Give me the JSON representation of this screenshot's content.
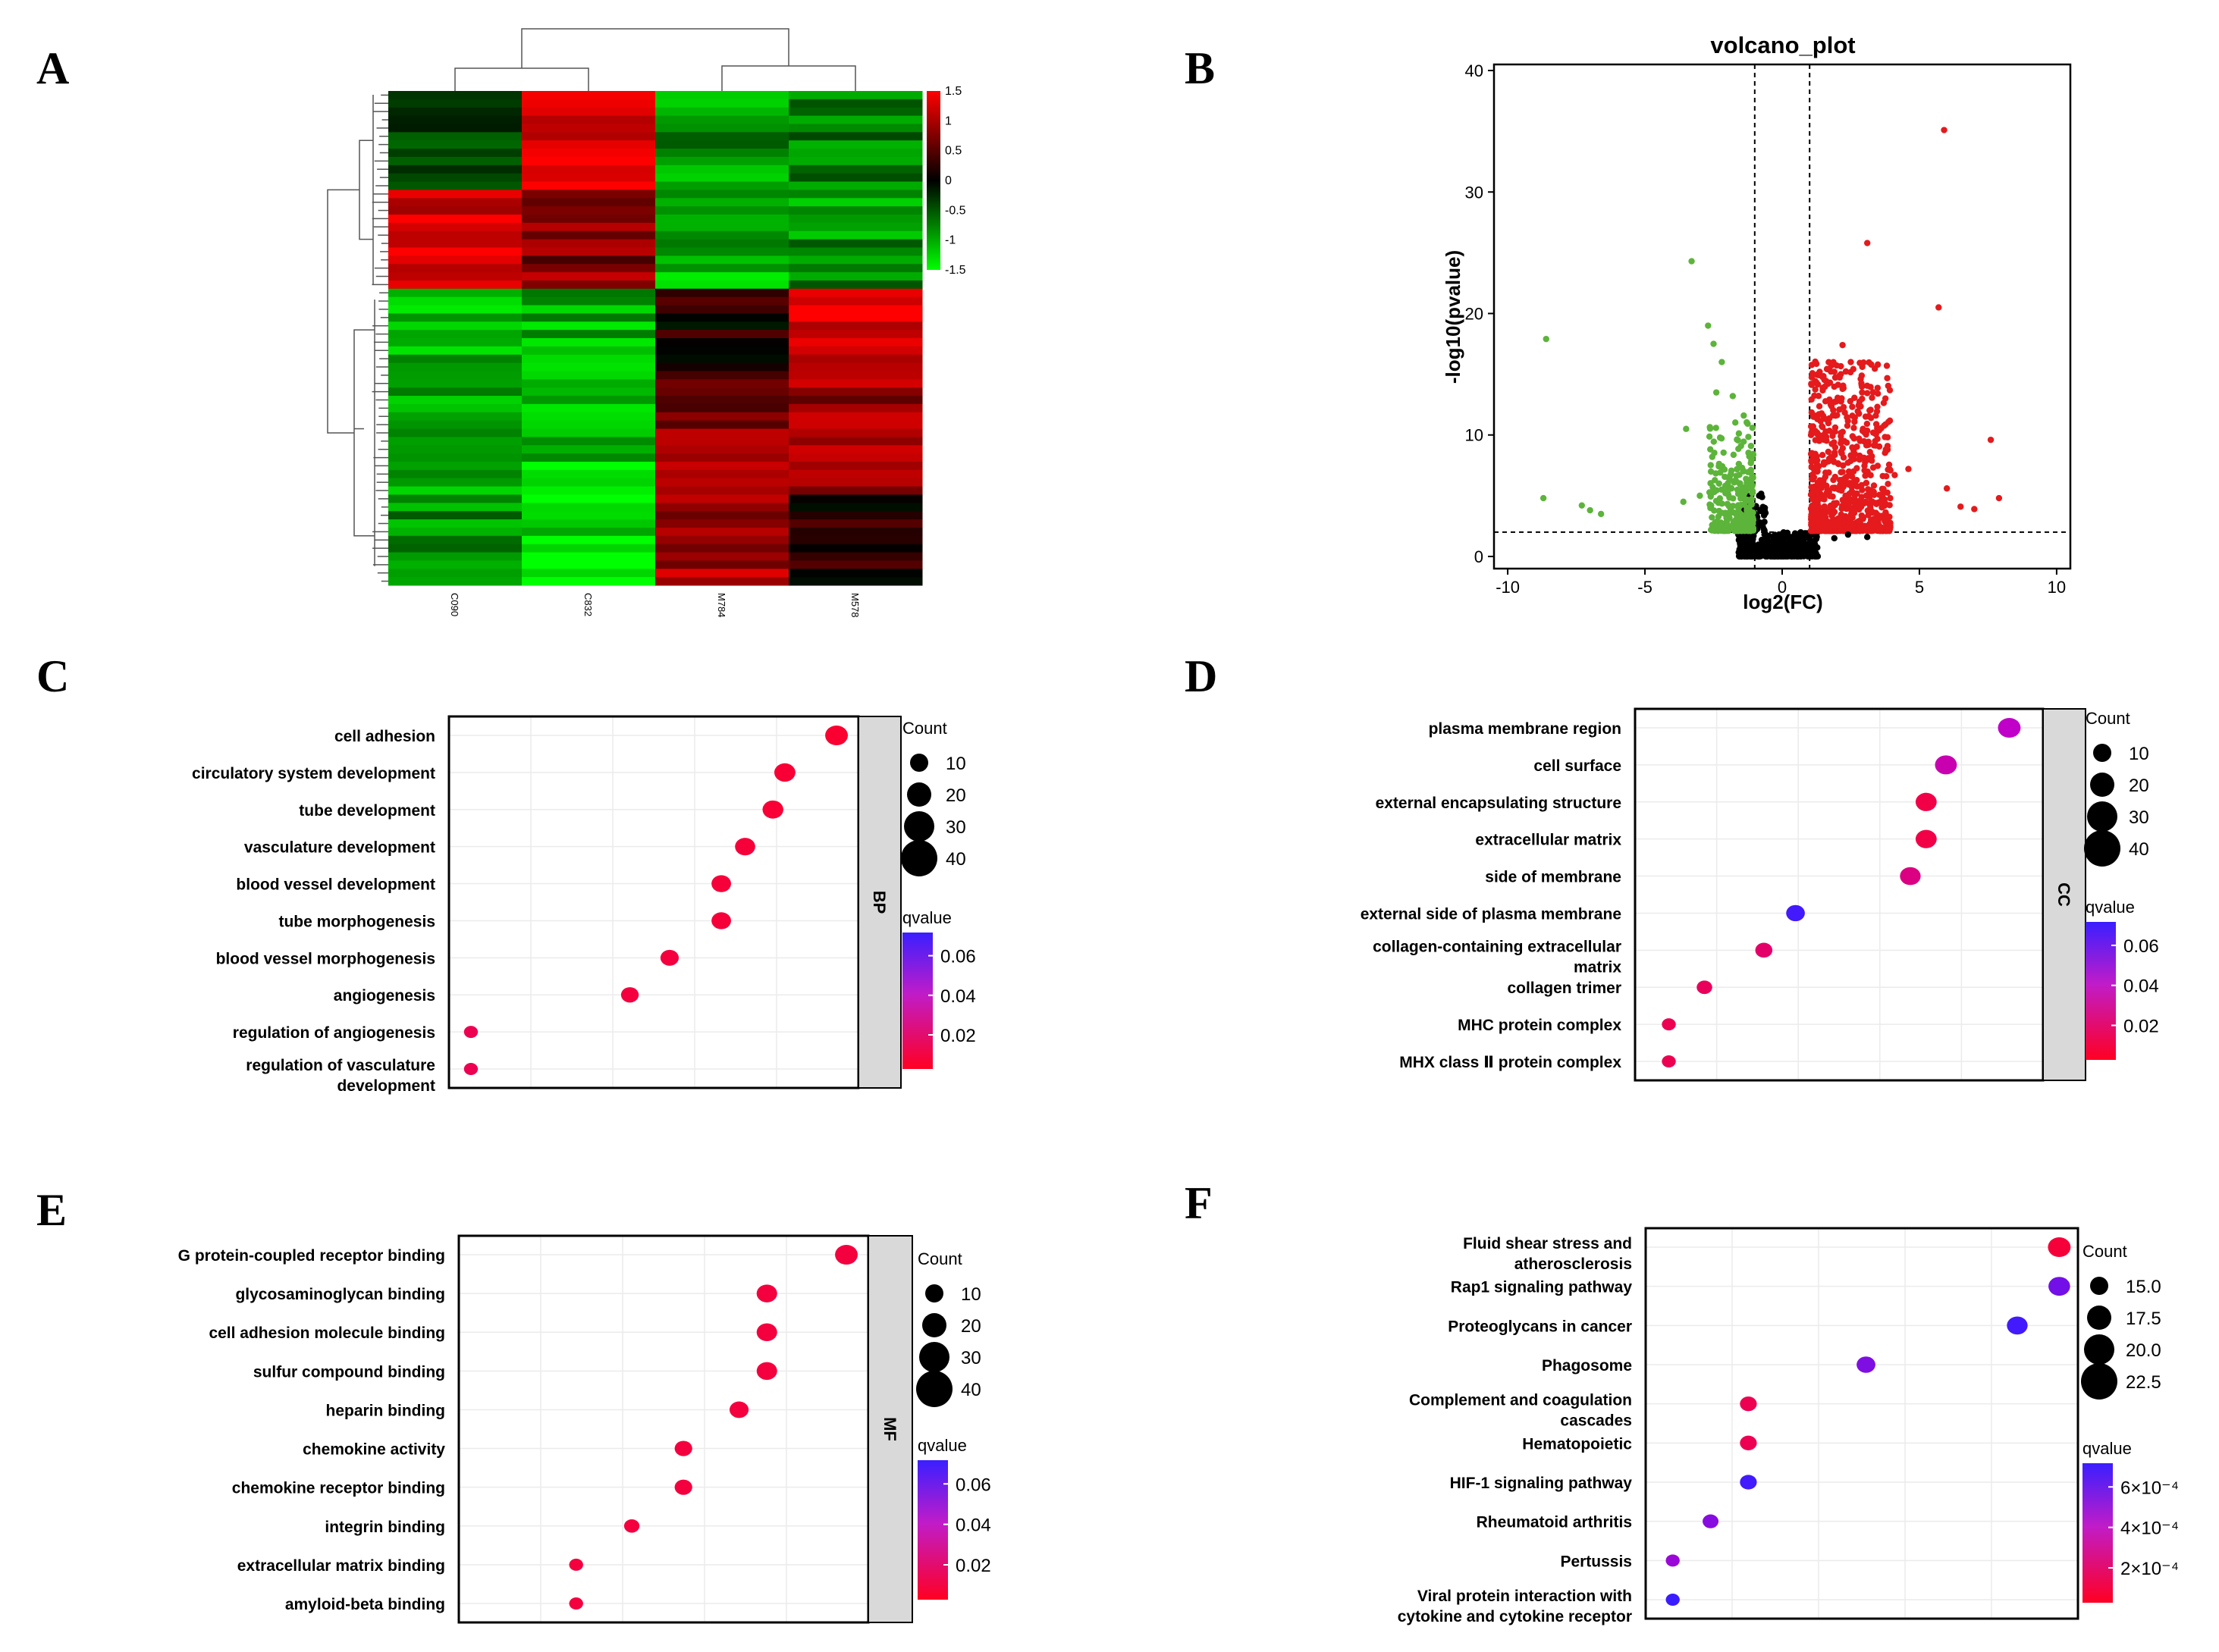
{
  "chart_data": [
    {
      "panel": "A",
      "type": "heatmap",
      "columns": [
        "C090",
        "C832",
        "M784",
        "M578"
      ],
      "blocks": [
        {
          "rows": 12,
          "values": [
            -0.3,
            1.4,
            -0.9,
            -0.8
          ]
        },
        {
          "rows": 12,
          "values": [
            1.3,
            0.8,
            -1.0,
            -0.9
          ]
        },
        {
          "rows": 10,
          "values": [
            -1.0,
            -1.0,
            0.2,
            1.4
          ]
        },
        {
          "rows": 14,
          "values": [
            -0.9,
            -1.2,
            0.8,
            0.9
          ]
        },
        {
          "rows": 12,
          "values": [
            -0.9,
            -1.3,
            1.0,
            0.3
          ]
        }
      ],
      "colorbar": {
        "ticks": [
          "1.5",
          "1",
          "0.5",
          "0",
          "-0.5",
          "-1",
          "-1.5"
        ],
        "low": "#00ff00",
        "mid": "#000000",
        "high": "#ff0000"
      }
    },
    {
      "panel": "B",
      "type": "scatter",
      "title": "volcano_plot",
      "xlabel": "log2(FC)",
      "ylabel": "-log10(pvalue)",
      "xlim": [
        -10.5,
        10.5
      ],
      "ylim": [
        -1,
        40.5
      ],
      "xticks": [
        "-10",
        "-5",
        "0",
        "5",
        "10"
      ],
      "yticks": [
        "0",
        "10",
        "20",
        "30",
        "40"
      ],
      "thresholds": {
        "x": [
          -1,
          1
        ],
        "y": 2
      },
      "colors": {
        "down": "#5cb43a",
        "up": "#e41a1c",
        "ns": "#000000"
      },
      "down_points": [
        [
          -8.6,
          17.9
        ],
        [
          -3.3,
          24.3
        ],
        [
          -2.7,
          19
        ],
        [
          -2.5,
          17.5
        ],
        [
          -2.2,
          16
        ],
        [
          -2.4,
          13.5
        ],
        [
          -3.5,
          10.5
        ],
        [
          -1.8,
          13.2
        ],
        [
          -8.7,
          4.8
        ],
        [
          -7.3,
          4.2
        ],
        [
          -7.0,
          3.8
        ],
        [
          -6.6,
          3.5
        ],
        [
          -3.6,
          4.5
        ],
        [
          -3.0,
          5.0
        ],
        [
          -2.6,
          4.1
        ],
        [
          -2.3,
          6.0
        ],
        [
          -1.4,
          11.6
        ],
        [
          -1.5,
          9.1
        ]
      ],
      "up_points": [
        [
          5.9,
          35.1
        ],
        [
          3.1,
          25.8
        ],
        [
          5.7,
          20.5
        ],
        [
          2.2,
          17.4
        ],
        [
          2.5,
          16.0
        ],
        [
          1.9,
          15.2
        ],
        [
          7.6,
          9.6
        ],
        [
          7.9,
          4.8
        ],
        [
          6.5,
          4.1
        ],
        [
          7.0,
          3.9
        ],
        [
          4.6,
          7.2
        ],
        [
          4.1,
          6.7
        ],
        [
          6.0,
          5.6
        ],
        [
          3.6,
          4.4
        ],
        [
          3.2,
          8.6
        ],
        [
          2.8,
          9.7
        ]
      ],
      "ns_points": [
        [
          3.1,
          1.6
        ],
        [
          2.4,
          1.8
        ],
        [
          1.9,
          1.5
        ],
        [
          -1.3,
          1.2
        ],
        [
          0.1,
          0.5
        ]
      ]
    },
    {
      "panel": "C",
      "type": "scatter",
      "facet": "BP",
      "categories": [
        "cell adhesion",
        "circulatory system development",
        "tube development",
        "vasculature development",
        "blood vessel development",
        "tube morphogenesis",
        "blood vessel morphogenesis",
        "angiogenesis",
        "regulation of angiogenesis",
        "regulation of vasculature development"
      ],
      "x": [
        0.96,
        0.83,
        0.8,
        0.73,
        0.67,
        0.67,
        0.54,
        0.44,
        0.04,
        0.04
      ],
      "size": [
        40,
        35,
        34,
        32,
        30,
        30,
        26,
        24,
        12,
        12
      ],
      "qvalue": [
        0.003,
        0.004,
        0.004,
        0.005,
        0.005,
        0.005,
        0.006,
        0.006,
        0.01,
        0.01
      ],
      "legend_size": {
        "title": "Count",
        "values": [
          "10",
          "20",
          "30",
          "40"
        ]
      },
      "legend_color": {
        "title": "qvalue",
        "ticks": [
          "0.06",
          "0.04",
          "0.02"
        ]
      }
    },
    {
      "panel": "D",
      "type": "scatter",
      "facet": "CC",
      "categories": [
        "plasma membrane region",
        "cell surface",
        "external encapsulating structure",
        "extracellular matrix",
        "side of membrane",
        "external side of plasma membrane",
        "collagen-containing extracellular matrix",
        "collagen trimer",
        "MHC protein complex",
        "MHX class Ⅱ protein complex"
      ],
      "x": [
        0.93,
        0.77,
        0.72,
        0.72,
        0.68,
        0.39,
        0.31,
        0.16,
        0.07,
        0.07
      ],
      "size": [
        30,
        28,
        26,
        26,
        25,
        20,
        16,
        12,
        8,
        8
      ],
      "qvalue": [
        0.035,
        0.03,
        0.008,
        0.008,
        0.02,
        0.068,
        0.015,
        0.012,
        0.01,
        0.01
      ],
      "legend_size": {
        "title": "Count",
        "values": [
          "10",
          "20",
          "30",
          "40"
        ]
      },
      "legend_color": {
        "title": "qvalue",
        "ticks": [
          "0.06",
          "0.04",
          "0.02"
        ]
      }
    },
    {
      "panel": "E",
      "type": "scatter",
      "facet": "MF",
      "categories": [
        "G protein-coupled receptor binding",
        "glycosaminoglycan binding",
        "cell adhesion molecule binding",
        "sulfur compound binding",
        "heparin binding",
        "chemokine activity",
        "chemokine receptor binding",
        "integrin binding",
        "extracellular matrix binding",
        "amyloid-beta binding"
      ],
      "x": [
        0.96,
        0.76,
        0.76,
        0.76,
        0.69,
        0.55,
        0.55,
        0.42,
        0.28,
        0.28
      ],
      "size": [
        40,
        34,
        34,
        34,
        30,
        26,
        26,
        20,
        16,
        16
      ],
      "qvalue": [
        0.006,
        0.006,
        0.006,
        0.006,
        0.006,
        0.006,
        0.006,
        0.006,
        0.006,
        0.006
      ],
      "legend_size": {
        "title": "Count",
        "values": [
          "10",
          "20",
          "30",
          "40"
        ]
      },
      "legend_color": {
        "title": "qvalue",
        "ticks": [
          "0.06",
          "0.04",
          "0.02"
        ]
      }
    },
    {
      "panel": "F",
      "type": "scatter",
      "categories": [
        "Fluid shear stress and atherosclerosis",
        "Rap1 signaling pathway",
        "Proteoglycans in cancer",
        "Phagosome",
        "Complement and coagulation cascades",
        "Hematopoietic",
        "HIF-1 signaling pathway",
        "Rheumatoid arthritis",
        "Pertussis",
        "Viral protein interaction with cytokine and cytokine receptor"
      ],
      "x": [
        0.97,
        0.97,
        0.87,
        0.51,
        0.23,
        0.23,
        0.23,
        0.14,
        0.05,
        0.05
      ],
      "size": [
        24,
        23,
        22,
        20,
        18,
        18,
        18,
        17,
        15,
        15
      ],
      "qvalue": [
        5e-05,
        0.00055,
        0.00068,
        0.00052,
        0.0001,
        0.0001,
        0.00068,
        0.0005,
        0.00045,
        0.0007
      ],
      "legend_size": {
        "title": "Count",
        "values": [
          "15.0",
          "17.5",
          "20.0",
          "22.5"
        ]
      },
      "legend_color": {
        "title": "qvalue",
        "ticks": [
          "6×10⁻⁴",
          "4×10⁻⁴",
          "2×10⁻⁴"
        ]
      }
    }
  ],
  "panel_labels": [
    "A",
    "B",
    "C",
    "D",
    "E",
    "F"
  ]
}
